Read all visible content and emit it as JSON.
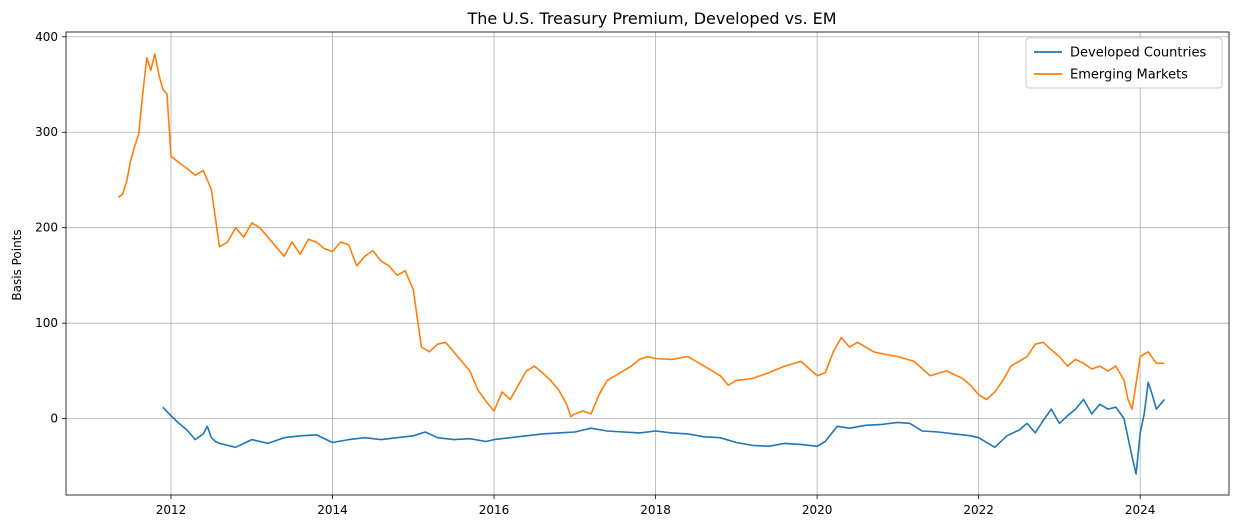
{
  "chart_data": {
    "type": "line",
    "title": "The U.S. Treasury Premium, Developed vs. EM",
    "xlabel": "",
    "ylabel": "Basis Points",
    "xlim": [
      2010.7,
      2025.1
    ],
    "ylim": [
      -80,
      405
    ],
    "x_ticks": [
      2012,
      2014,
      2016,
      2018,
      2020,
      2022,
      2024
    ],
    "x_tick_labels": [
      "2012",
      "2014",
      "2016",
      "2018",
      "2020",
      "2022",
      "2024"
    ],
    "y_ticks": [
      0,
      100,
      200,
      300,
      400
    ],
    "y_tick_labels": [
      "0",
      "100",
      "200",
      "300",
      "400"
    ],
    "grid": true,
    "legend": "top-right",
    "series": [
      {
        "name": "Developed Countries",
        "color": "#1f77b4",
        "x": [
          2011.9,
          2012.0,
          2012.1,
          2012.2,
          2012.3,
          2012.4,
          2012.45,
          2012.5,
          2012.55,
          2012.6,
          2012.8,
          2013.0,
          2013.2,
          2013.4,
          2013.6,
          2013.8,
          2014.0,
          2014.2,
          2014.4,
          2014.6,
          2014.8,
          2015.0,
          2015.15,
          2015.3,
          2015.5,
          2015.7,
          2015.9,
          2016.0,
          2016.2,
          2016.4,
          2016.6,
          2016.8,
          2017.0,
          2017.2,
          2017.4,
          2017.6,
          2017.8,
          2018.0,
          2018.2,
          2018.4,
          2018.6,
          2018.8,
          2019.0,
          2019.2,
          2019.4,
          2019.6,
          2019.8,
          2020.0,
          2020.1,
          2020.25,
          2020.4,
          2020.6,
          2020.8,
          2021.0,
          2021.15,
          2021.3,
          2021.5,
          2021.7,
          2021.9,
          2022.0,
          2022.2,
          2022.35,
          2022.5,
          2022.6,
          2022.7,
          2022.8,
          2022.9,
          2023.0,
          2023.1,
          2023.2,
          2023.3,
          2023.4,
          2023.5,
          2023.6,
          2023.7,
          2023.8,
          2023.85,
          2023.9,
          2023.95,
          2024.0,
          2024.05,
          2024.1,
          2024.15,
          2024.2,
          2024.25,
          2024.3
        ],
        "values": [
          12,
          3,
          -5,
          -12,
          -22,
          -16,
          -8,
          -20,
          -24,
          -26,
          -30,
          -22,
          -26,
          -20,
          -18,
          -17,
          -25,
          -22,
          -20,
          -22,
          -20,
          -18,
          -14,
          -20,
          -22,
          -21,
          -24,
          -22,
          -20,
          -18,
          -16,
          -15,
          -14,
          -10,
          -13,
          -14,
          -15,
          -13,
          -15,
          -16,
          -19,
          -20,
          -25,
          -28,
          -29,
          -26,
          -27,
          -29,
          -24,
          -8,
          -10,
          -7,
          -6,
          -4,
          -5,
          -13,
          -14,
          -16,
          -18,
          -20,
          -30,
          -18,
          -12,
          -5,
          -15,
          -2,
          10,
          -5,
          3,
          10,
          20,
          5,
          15,
          10,
          12,
          0,
          -20,
          -40,
          -58,
          -15,
          5,
          38,
          25,
          10,
          15,
          20
        ]
      },
      {
        "name": "Emerging Markets",
        "color": "#ff7f0e",
        "x": [
          2011.35,
          2011.4,
          2011.45,
          2011.5,
          2011.55,
          2011.6,
          2011.65,
          2011.7,
          2011.75,
          2011.8,
          2011.85,
          2011.9,
          2011.95,
          2012.0,
          2012.1,
          2012.2,
          2012.3,
          2012.4,
          2012.5,
          2012.55,
          2012.6,
          2012.7,
          2012.8,
          2012.9,
          2013.0,
          2013.1,
          2013.2,
          2013.3,
          2013.4,
          2013.5,
          2013.6,
          2013.7,
          2013.8,
          2013.9,
          2014.0,
          2014.1,
          2014.2,
          2014.3,
          2014.4,
          2014.5,
          2014.6,
          2014.7,
          2014.8,
          2014.9,
          2015.0,
          2015.1,
          2015.2,
          2015.3,
          2015.4,
          2015.5,
          2015.6,
          2015.7,
          2015.8,
          2015.9,
          2016.0,
          2016.1,
          2016.2,
          2016.3,
          2016.4,
          2016.5,
          2016.6,
          2016.7,
          2016.8,
          2016.9,
          2016.95,
          2017.0,
          2017.1,
          2017.2,
          2017.3,
          2017.4,
          2017.5,
          2017.6,
          2017.7,
          2017.8,
          2017.9,
          2018.0,
          2018.2,
          2018.4,
          2018.6,
          2018.8,
          2018.9,
          2019.0,
          2019.2,
          2019.4,
          2019.6,
          2019.8,
          2020.0,
          2020.1,
          2020.2,
          2020.3,
          2020.4,
          2020.5,
          2020.6,
          2020.7,
          2020.8,
          2021.0,
          2021.2,
          2021.4,
          2021.6,
          2021.8,
          2021.9,
          2022.0,
          2022.1,
          2022.2,
          2022.3,
          2022.4,
          2022.5,
          2022.6,
          2022.7,
          2022.8,
          2022.9,
          2023.0,
          2023.1,
          2023.2,
          2023.3,
          2023.4,
          2023.5,
          2023.6,
          2023.7,
          2023.8,
          2023.85,
          2023.9,
          2024.0,
          2024.1,
          2024.2,
          2024.3
        ],
        "values": [
          232,
          235,
          248,
          270,
          285,
          298,
          340,
          378,
          365,
          382,
          360,
          345,
          340,
          275,
          268,
          262,
          255,
          260,
          240,
          210,
          180,
          185,
          200,
          190,
          205,
          200,
          190,
          180,
          170,
          185,
          172,
          188,
          185,
          178,
          175,
          185,
          182,
          160,
          170,
          176,
          165,
          160,
          150,
          155,
          135,
          75,
          70,
          78,
          80,
          70,
          60,
          50,
          30,
          18,
          8,
          28,
          20,
          35,
          50,
          55,
          48,
          40,
          30,
          15,
          2,
          5,
          8,
          5,
          25,
          40,
          45,
          50,
          55,
          62,
          65,
          63,
          62,
          65,
          55,
          45,
          35,
          40,
          42,
          48,
          55,
          60,
          45,
          48,
          70,
          85,
          75,
          80,
          75,
          70,
          68,
          65,
          60,
          45,
          50,
          42,
          35,
          25,
          20,
          28,
          40,
          55,
          60,
          65,
          78,
          80,
          72,
          65,
          55,
          62,
          58,
          52,
          55,
          50,
          55,
          40,
          20,
          10,
          65,
          70,
          58,
          58
        ]
      }
    ]
  }
}
